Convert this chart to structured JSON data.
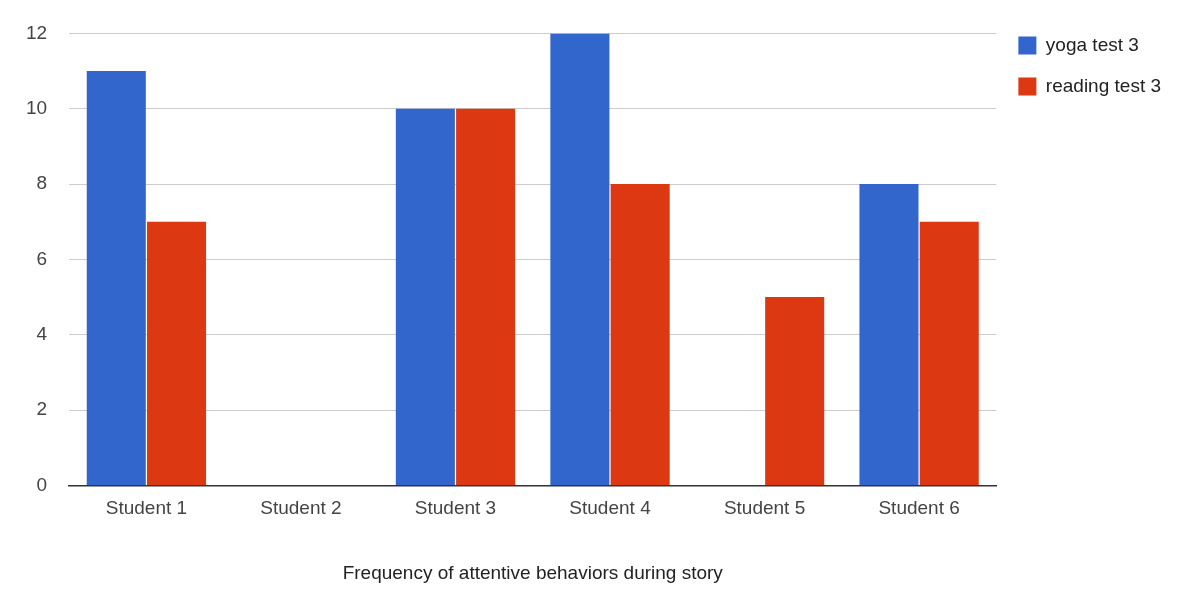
{
  "chart_data": {
    "type": "bar",
    "xlabel": "Frequency of attentive behaviors during story",
    "categories": [
      "Student 1",
      "Student 2",
      "Student 3",
      "Student 4",
      "Student 5",
      "Student 6"
    ],
    "series": [
      {
        "name": "yoga test 3",
        "color": "#3366cc",
        "values": [
          11,
          0,
          10,
          12,
          0,
          8
        ]
      },
      {
        "name": "reading test 3",
        "color": "#dc3912",
        "values": [
          7,
          0,
          10,
          8,
          5,
          7
        ]
      }
    ],
    "ylim": [
      0,
      12
    ],
    "yticks": [
      0,
      2,
      4,
      6,
      8,
      10,
      12
    ],
    "grid": "y",
    "legend": "top right"
  }
}
